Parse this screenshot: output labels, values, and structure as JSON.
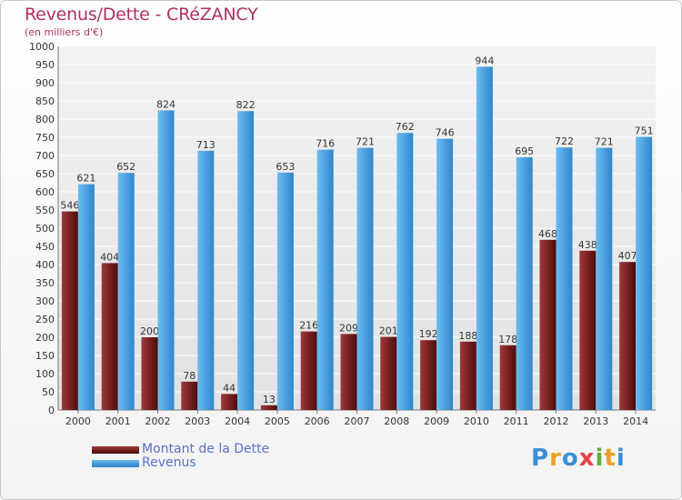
{
  "chart_data": {
    "type": "bar",
    "title": "Revenus/Dette - CRéZANCY",
    "subtitle": "(en milliers d'€)",
    "categories": [
      "2000",
      "2001",
      "2002",
      "2003",
      "2004",
      "2005",
      "2006",
      "2007",
      "2008",
      "2009",
      "2010",
      "2011",
      "2012",
      "2013",
      "2014"
    ],
    "ylim": [
      0,
      1000
    ],
    "ytick_step": 50,
    "grid": true,
    "series": [
      {
        "name": "Montant de la Dette",
        "color": "#7a1f1f",
        "values": [
          546,
          404,
          200,
          78,
          44,
          13,
          216,
          209,
          201,
          192,
          188,
          178,
          468,
          438,
          407
        ]
      },
      {
        "name": "Revenus",
        "color": "#4aa3e8",
        "values": [
          621,
          652,
          824,
          713,
          822,
          653,
          716,
          721,
          762,
          746,
          944,
          695,
          722,
          721,
          751
        ]
      }
    ]
  },
  "logo": {
    "letters": [
      "P",
      "r",
      "o",
      "x",
      "i",
      "t",
      "i"
    ],
    "colors": [
      "#3a8fd8",
      "#e8a020",
      "#3a8fd8",
      "#e84040",
      "#60b040",
      "#e8a020",
      "#3a8fd8"
    ]
  }
}
